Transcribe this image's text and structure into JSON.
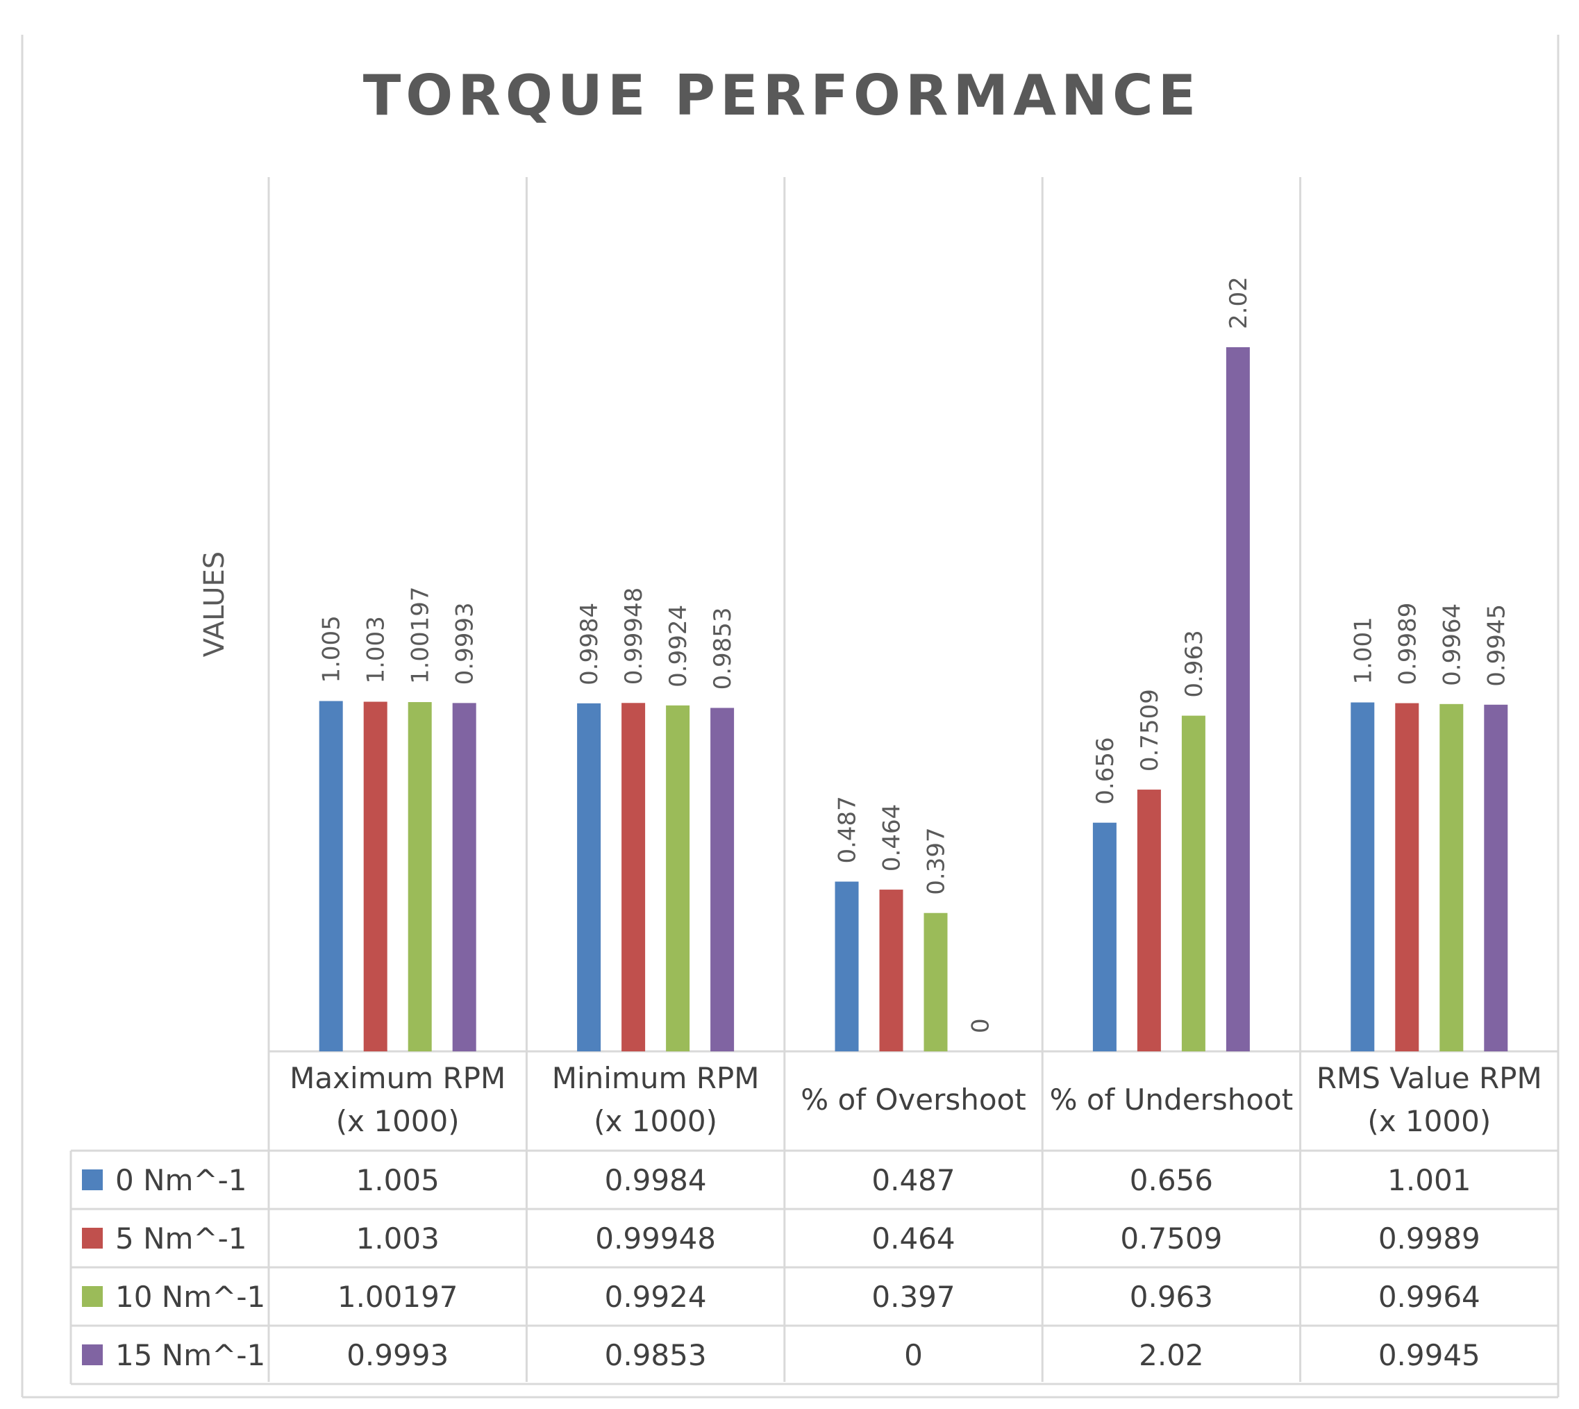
{
  "chart_data": {
    "type": "bar",
    "title": "TORQUE PERFORMANCE",
    "ylabel": "VALUES",
    "xlabel": "",
    "categories": [
      [
        "Maximum RPM",
        "(x 1000)"
      ],
      [
        "Minimum RPM",
        "(x 1000)"
      ],
      [
        "% of Overshoot"
      ],
      [
        "% of Undershoot"
      ],
      [
        "RMS Value RPM",
        "(x 1000)"
      ]
    ],
    "series": [
      {
        "name": "0 Nm^-1",
        "color": "#4f81bd",
        "values": [
          1.005,
          0.9984,
          0.487,
          0.656,
          1.001
        ],
        "labels": [
          "1.005",
          "0.9984",
          "0.487",
          "0.656",
          "1.001"
        ]
      },
      {
        "name": "5 Nm^-1",
        "color": "#c0504d",
        "values": [
          1.003,
          0.99948,
          0.464,
          0.7509,
          0.9989
        ],
        "labels": [
          "1.003",
          "0.99948",
          "0.464",
          "0.7509",
          "0.9989"
        ]
      },
      {
        "name": "10 Nm^-1",
        "color": "#9bbb59",
        "values": [
          1.00197,
          0.9924,
          0.397,
          0.963,
          0.9964
        ],
        "labels": [
          "1.00197",
          "0.9924",
          "0.397",
          "0.963",
          "0.9964"
        ]
      },
      {
        "name": "15 Nm^-1",
        "color": "#8064a2",
        "values": [
          0.9993,
          0.9853,
          0,
          2.02,
          0.9945
        ],
        "labels": [
          "0.9993",
          "0.9853",
          "0",
          "2.02",
          "0.9945"
        ]
      }
    ],
    "ylim": [
      0,
      2.5
    ],
    "grid": false,
    "legend": "data-table",
    "data_labels": "vertical"
  }
}
